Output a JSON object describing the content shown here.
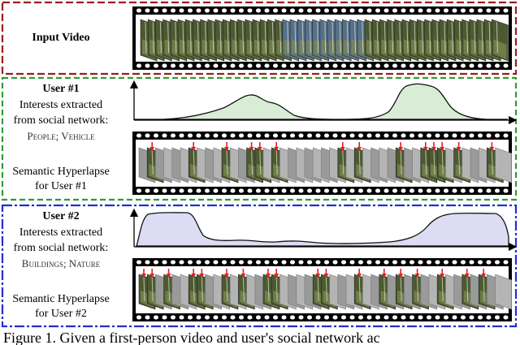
{
  "input_section": {
    "label": "Input Video",
    "border_color": "#9b1c1c"
  },
  "user1": {
    "title": "User #1",
    "interests_line1": "Interests extracted",
    "interests_line2": "from social network:",
    "topics": "People; Vehicle",
    "result_line1": "Semantic Hyperlapse",
    "result_line2": "for User #1",
    "border_color": "#2e9e2e",
    "curve_fill": "#d8ecd6",
    "selected_frame_count": 14
  },
  "user2": {
    "title": "User #2",
    "interests_line1": "Interests extracted",
    "interests_line2": "from social network:",
    "topics": "Buildings; Nature",
    "result_line1": "Semantic Hyperlapse",
    "result_line2": "for User #2",
    "border_color": "#1f2fd0",
    "curve_fill": "#dcdcf4",
    "selected_frame_count": 18
  },
  "caption": "Figure 1. Given a first-person video and user's social network ac",
  "colors": {
    "arrow": "#e02020",
    "film": "#000000",
    "frame_dim": "#9a9a9a",
    "frame_dark": "#4c5a32"
  }
}
